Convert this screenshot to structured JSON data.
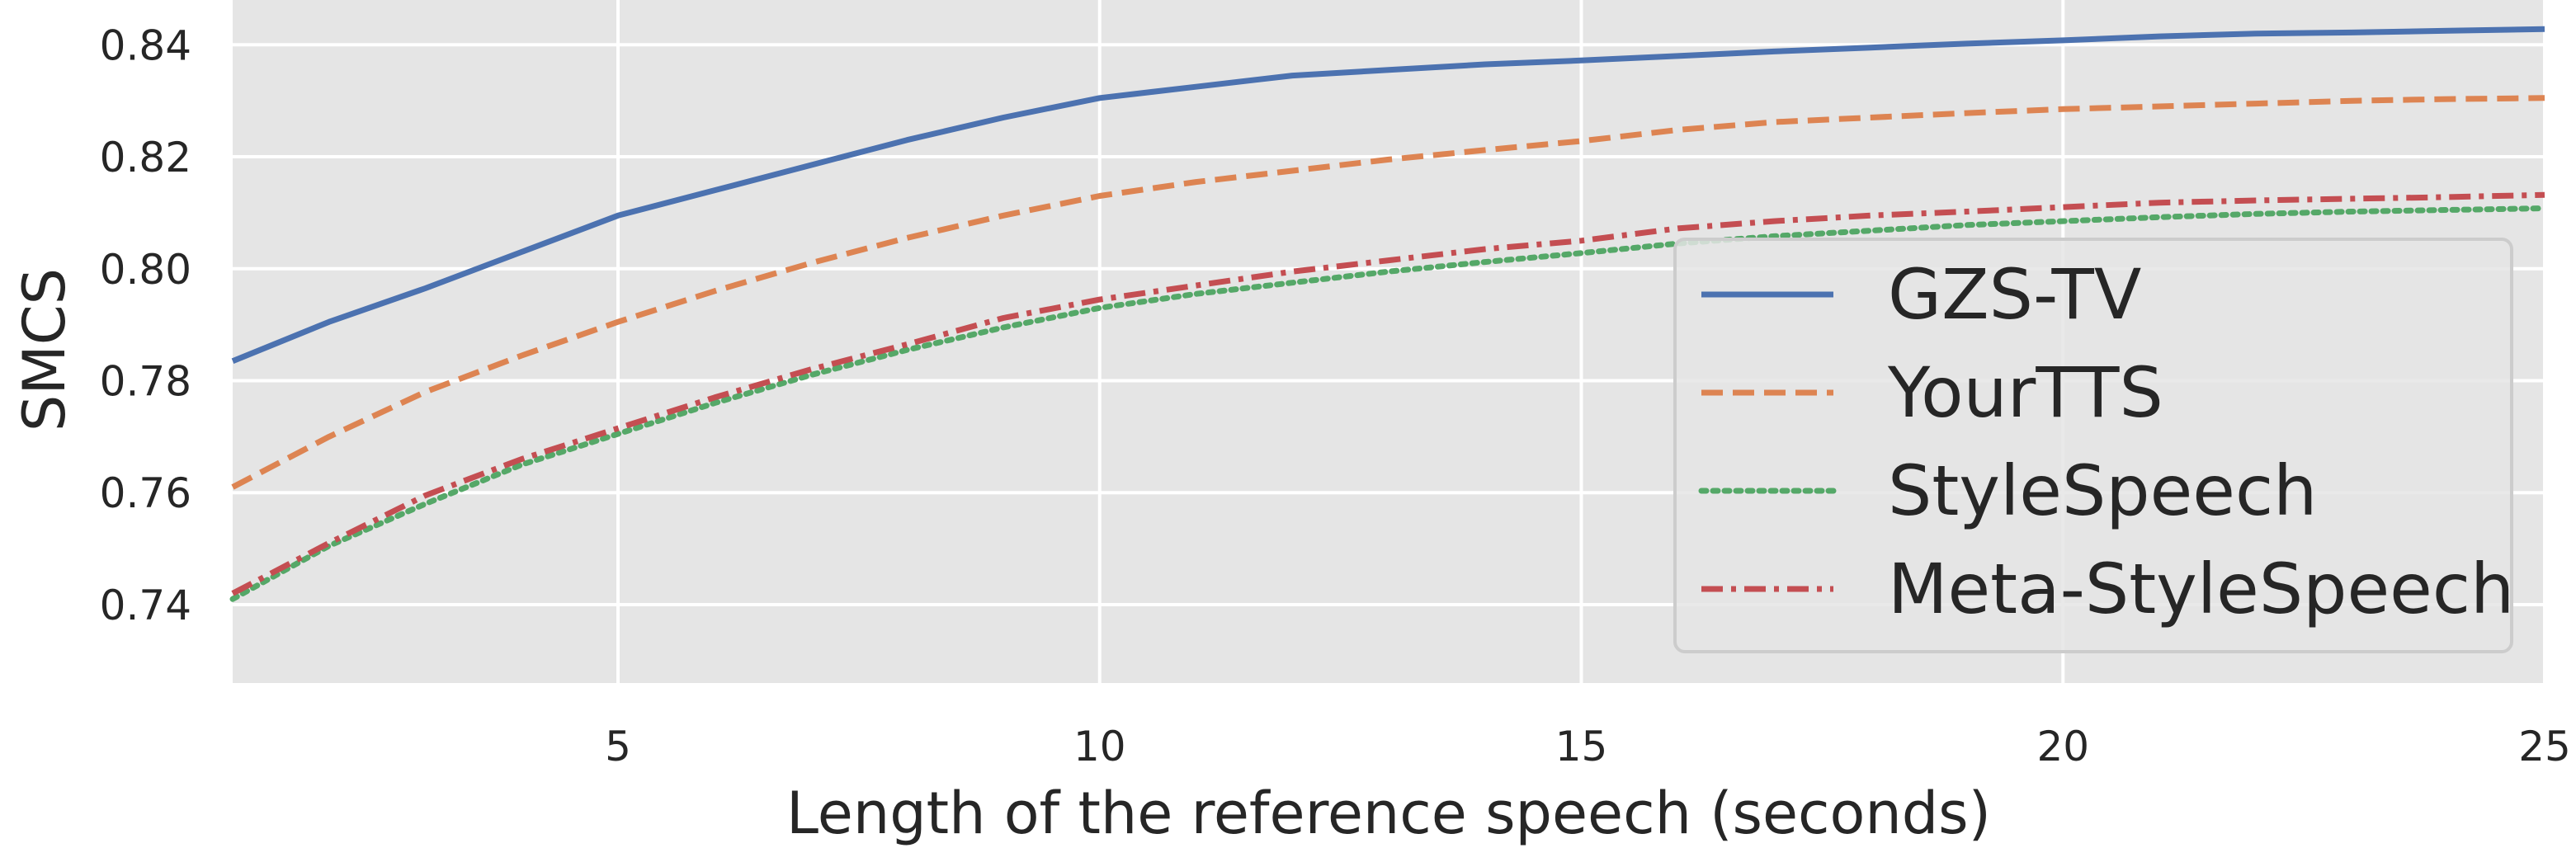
{
  "chart_data": {
    "type": "line",
    "xlabel": "Length of the reference speech (seconds)",
    "ylabel": "SMCS",
    "xlim": [
      1,
      25
    ],
    "ylim": [
      0.726,
      0.848
    ],
    "xticks": [
      5,
      10,
      15,
      20,
      25
    ],
    "yticks": [
      0.74,
      0.76,
      0.78,
      0.8,
      0.82,
      0.84
    ],
    "ytick_labels": [
      "0.74",
      "0.76",
      "0.78",
      "0.80",
      "0.82",
      "0.84"
    ],
    "grid": true,
    "legend_position": "lower-right",
    "x": [
      1,
      2,
      3,
      4,
      5,
      6,
      7,
      8,
      9,
      10,
      11,
      12,
      13,
      14,
      15,
      16,
      17,
      18,
      19,
      20,
      21,
      22,
      23,
      24,
      25
    ],
    "series": [
      {
        "name": "GZS-TV",
        "color": "#4c72b0",
        "style": "solid",
        "values": [
          0.7835,
          0.7905,
          0.7965,
          0.803,
          0.8095,
          0.814,
          0.8185,
          0.823,
          0.827,
          0.8305,
          0.8325,
          0.8345,
          0.8355,
          0.8365,
          0.8372,
          0.838,
          0.8388,
          0.8395,
          0.8402,
          0.8408,
          0.8415,
          0.842,
          0.8422,
          0.8425,
          0.8428
        ]
      },
      {
        "name": "YourTTS",
        "color": "#dd8452",
        "style": "dashed",
        "values": [
          0.761,
          0.77,
          0.778,
          0.7845,
          0.7905,
          0.796,
          0.801,
          0.8055,
          0.8095,
          0.813,
          0.8155,
          0.8175,
          0.8195,
          0.8212,
          0.8228,
          0.8248,
          0.8262,
          0.827,
          0.8278,
          0.8285,
          0.829,
          0.8295,
          0.83,
          0.8303,
          0.8305
        ]
      },
      {
        "name": "StyleSpeech",
        "color": "#55a868",
        "style": "dotted",
        "values": [
          0.741,
          0.7505,
          0.758,
          0.765,
          0.7705,
          0.776,
          0.781,
          0.7855,
          0.7895,
          0.793,
          0.7955,
          0.7975,
          0.7995,
          0.8012,
          0.8028,
          0.8045,
          0.8058,
          0.8068,
          0.8078,
          0.8085,
          0.8092,
          0.8098,
          0.8102,
          0.8105,
          0.8108
        ]
      },
      {
        "name": "Meta-StyleSpeech",
        "color": "#c44e52",
        "style": "dashdot",
        "values": [
          0.742,
          0.751,
          0.7595,
          0.766,
          0.7715,
          0.777,
          0.782,
          0.7865,
          0.7912,
          0.7945,
          0.797,
          0.7995,
          0.8015,
          0.8035,
          0.805,
          0.8072,
          0.8085,
          0.8095,
          0.8102,
          0.811,
          0.8118,
          0.8122,
          0.8125,
          0.8128,
          0.8132
        ]
      }
    ]
  },
  "colors": {
    "plot_background": "#e5e5e5",
    "grid": "#ffffff",
    "text": "#262626"
  }
}
